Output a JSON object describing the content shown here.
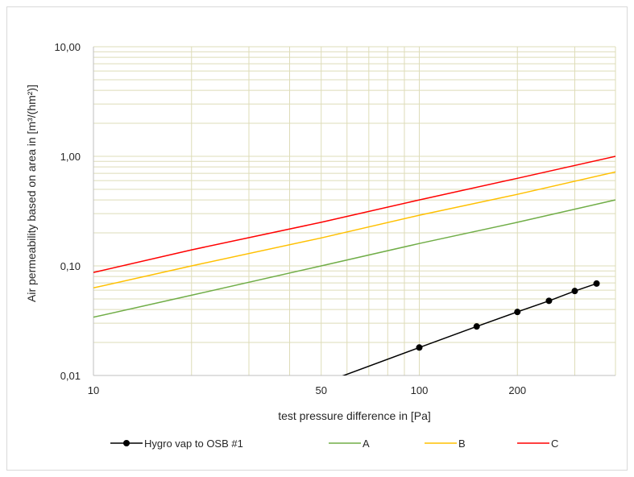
{
  "chart_data": {
    "type": "line",
    "xscale": "log",
    "yscale": "log",
    "xlabel": "test pressure difference in [Pa]",
    "ylabel": "Air permeability based on area in [m³/(hm²)]",
    "xlim": [
      10,
      400
    ],
    "ylim": [
      0.01,
      10
    ],
    "x_ticks": [
      10,
      50,
      100,
      200
    ],
    "x_tick_labels": [
      "10",
      "50",
      "100",
      "200"
    ],
    "y_ticks": [
      0.01,
      0.1,
      1,
      10
    ],
    "y_tick_labels": [
      "0,01",
      "0,10",
      "1,00",
      "10,00"
    ],
    "grid": true,
    "legend_position": "bottom",
    "series": [
      {
        "name": "Hygro vap to OSB #1",
        "color": "#000000",
        "markers": true,
        "x": [
          56,
          100,
          150,
          200,
          250,
          300,
          350
        ],
        "y": [
          0.0095,
          0.018,
          0.028,
          0.038,
          0.048,
          0.059,
          0.069
        ]
      },
      {
        "name": "A",
        "color": "#70ad47",
        "markers": false,
        "x": [
          10,
          20,
          50,
          100,
          200,
          400
        ],
        "y": [
          0.034,
          0.054,
          0.1,
          0.16,
          0.25,
          0.4
        ]
      },
      {
        "name": "B",
        "color": "#ffc000",
        "markers": false,
        "x": [
          10,
          20,
          50,
          100,
          200,
          400
        ],
        "y": [
          0.063,
          0.1,
          0.18,
          0.29,
          0.45,
          0.72
        ]
      },
      {
        "name": "C",
        "color": "#ff0000",
        "markers": false,
        "x": [
          10,
          20,
          50,
          100,
          200,
          400
        ],
        "y": [
          0.087,
          0.14,
          0.25,
          0.4,
          0.63,
          1.0
        ]
      }
    ]
  },
  "colors": {
    "grid": "#dedcb8",
    "axis": "#bfbfbf",
    "frame_border": "#d9d9d9"
  }
}
